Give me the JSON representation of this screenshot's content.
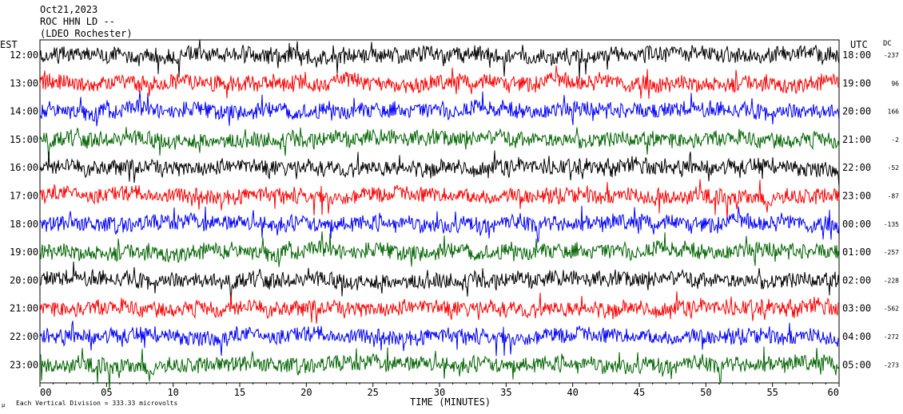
{
  "header": {
    "date": "Oct21,2023",
    "station": "ROC HHN LD --",
    "network": "(LDEO Rochester)"
  },
  "footer": {
    "scale_prefix": "µ",
    "scale_note": "Each Vertical Division =  333.33 microvolts"
  },
  "chart_data": {
    "type": "line",
    "title": "",
    "xlabel": "TIME (MINUTES)",
    "x_ticks": [
      "00",
      "05",
      "10",
      "15",
      "20",
      "25",
      "30",
      "35",
      "40",
      "45",
      "50",
      "55",
      "60"
    ],
    "xlim": [
      0,
      60
    ],
    "left_axis_label": "EST",
    "right_axis_label": "UTC",
    "dc_label": "DC",
    "rows": [
      {
        "est": "12:00",
        "utc": "18:00",
        "dc": "-237",
        "color": "#000000"
      },
      {
        "est": "13:00",
        "utc": "19:00",
        "dc": "96",
        "color": "#ff0000"
      },
      {
        "est": "14:00",
        "utc": "20:00",
        "dc": "166",
        "color": "#0000ff"
      },
      {
        "est": "15:00",
        "utc": "21:00",
        "dc": "-2",
        "color": "#006400"
      },
      {
        "est": "16:00",
        "utc": "22:00",
        "dc": "-52",
        "color": "#000000"
      },
      {
        "est": "17:00",
        "utc": "23:00",
        "dc": "-87",
        "color": "#ff0000"
      },
      {
        "est": "18:00",
        "utc": "00:00",
        "dc": "-135",
        "color": "#0000ff"
      },
      {
        "est": "19:00",
        "utc": "01:00",
        "dc": "-257",
        "color": "#006400"
      },
      {
        "est": "20:00",
        "utc": "02:00",
        "dc": "-228",
        "color": "#000000"
      },
      {
        "est": "21:00",
        "utc": "03:00",
        "dc": "-562",
        "color": "#ff0000"
      },
      {
        "est": "22:00",
        "utc": "04:00",
        "dc": "-272",
        "color": "#0000ff"
      },
      {
        "est": "23:00",
        "utc": "05:00",
        "dc": "-273",
        "color": "#006400"
      }
    ]
  }
}
